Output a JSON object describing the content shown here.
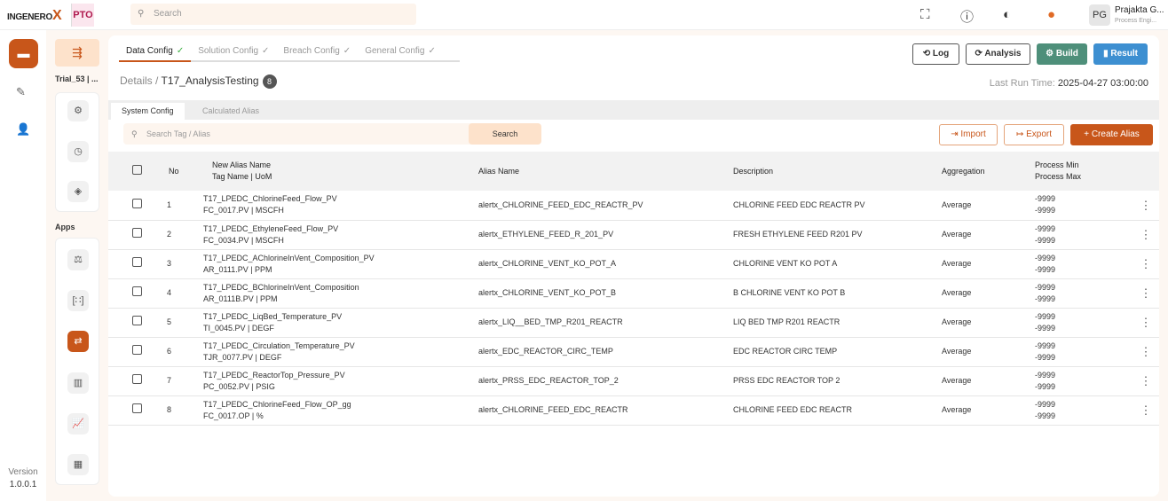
{
  "header": {
    "brand": "INGENERO",
    "brand_mark": "X",
    "partner_logo": "PTO",
    "search_placeholder": "Search",
    "user_initials": "PG",
    "user_name": "Prajakta G...",
    "user_role": "Process Engi..."
  },
  "rail": {
    "version_label": "Version",
    "version": "1.0.0.1"
  },
  "panel": {
    "trial": "Trial_53 | ...",
    "apps_label": "Apps"
  },
  "tabs": [
    {
      "label": "Data Config",
      "active": true
    },
    {
      "label": "Solution Config"
    },
    {
      "label": "Breach Config"
    },
    {
      "label": "General Config"
    }
  ],
  "breadcrumb": {
    "root": "Details",
    "sep": " / ",
    "current": "T17_AnalysisTesting",
    "count": "8"
  },
  "actions": {
    "log": "Log",
    "analysis": "Analysis",
    "build": "Build",
    "result": "Result"
  },
  "last_run": {
    "label": "Last Run Time:",
    "value": "2025-04-27 03:00:00"
  },
  "subtabs": [
    "System Config",
    "Calculated Alias"
  ],
  "table_search": {
    "placeholder": "Search Tag / Alias",
    "button": "Search"
  },
  "table_actions": {
    "import": "Import",
    "export": "Export",
    "create": "+ Create Alias"
  },
  "colors": {
    "accent": "#c8561a",
    "build": "#4e8f7a",
    "result": "#3d8fd1"
  },
  "columns": {
    "no": "No",
    "new_alias": "New Alias Name",
    "tag_uom": "Tag Name | UoM",
    "alias": "Alias Name",
    "description": "Description",
    "aggregation": "Aggregation",
    "pmin": "Process Min",
    "pmax": "Process Max"
  },
  "rows": [
    {
      "no": "1",
      "new_alias": "T17_LPEDC_ChlorineFeed_Flow_PV",
      "tag": "FC_0017.PV | MSCFH",
      "alias": "alertx_CHLORINE_FEED_EDC_REACTR_PV",
      "desc": "CHLORINE FEED EDC REACTR PV",
      "agg": "Average",
      "min": "-9999",
      "max": "-9999"
    },
    {
      "no": "2",
      "new_alias": "T17_LPEDC_EthyleneFeed_Flow_PV",
      "tag": "FC_0034.PV | MSCFH",
      "alias": "alertx_ETHYLENE_FEED_R_201_PV",
      "desc": "FRESH ETHYLENE FEED R201 PV",
      "agg": "Average",
      "min": "-9999",
      "max": "-9999"
    },
    {
      "no": "3",
      "new_alias": "T17_LPEDC_AChlorineInVent_Composition_PV",
      "tag": "AR_0111.PV | PPM",
      "alias": "alertx_CHLORINE_VENT_KO_POT_A",
      "desc": "CHLORINE VENT KO POT A",
      "agg": "Average",
      "min": "-9999",
      "max": "-9999"
    },
    {
      "no": "4",
      "new_alias": "T17_LPEDC_BChlorineInVent_Composition",
      "tag": "AR_0111B.PV | PPM",
      "alias": "alertx_CHLORINE_VENT_KO_POT_B",
      "desc": "B CHLORINE VENT KO POT B",
      "agg": "Average",
      "min": "-9999",
      "max": "-9999"
    },
    {
      "no": "5",
      "new_alias": "T17_LPEDC_LiqBed_Temperature_PV",
      "tag": "TI_0045.PV | DEGF",
      "alias": "alertx_LIQ__BED_TMP_R201_REACTR",
      "desc": "LIQ BED TMP R201 REACTR",
      "agg": "Average",
      "min": "-9999",
      "max": "-9999"
    },
    {
      "no": "6",
      "new_alias": "T17_LPEDC_Circulation_Temperature_PV",
      "tag": "TJR_0077.PV | DEGF",
      "alias": "alertx_EDC_REACTOR_CIRC_TEMP",
      "desc": "EDC REACTOR CIRC TEMP",
      "agg": "Average",
      "min": "-9999",
      "max": "-9999"
    },
    {
      "no": "7",
      "new_alias": "T17_LPEDC_ReactorTop_Pressure_PV",
      "tag": "PC_0052.PV | PSIG",
      "alias": "alertx_PRSS_EDC_REACTOR_TOP_2",
      "desc": "PRSS EDC REACTOR TOP 2",
      "agg": "Average",
      "min": "-9999",
      "max": "-9999"
    },
    {
      "no": "8",
      "new_alias": "T17_LPEDC_ChlorineFeed_Flow_OP_gg",
      "tag": "FC_0017.OP | %",
      "alias": "alertx_CHLORINE_FEED_EDC_REACTR",
      "desc": "CHLORINE FEED EDC REACTR",
      "agg": "Average",
      "min": "-9999",
      "max": "-9999"
    }
  ]
}
